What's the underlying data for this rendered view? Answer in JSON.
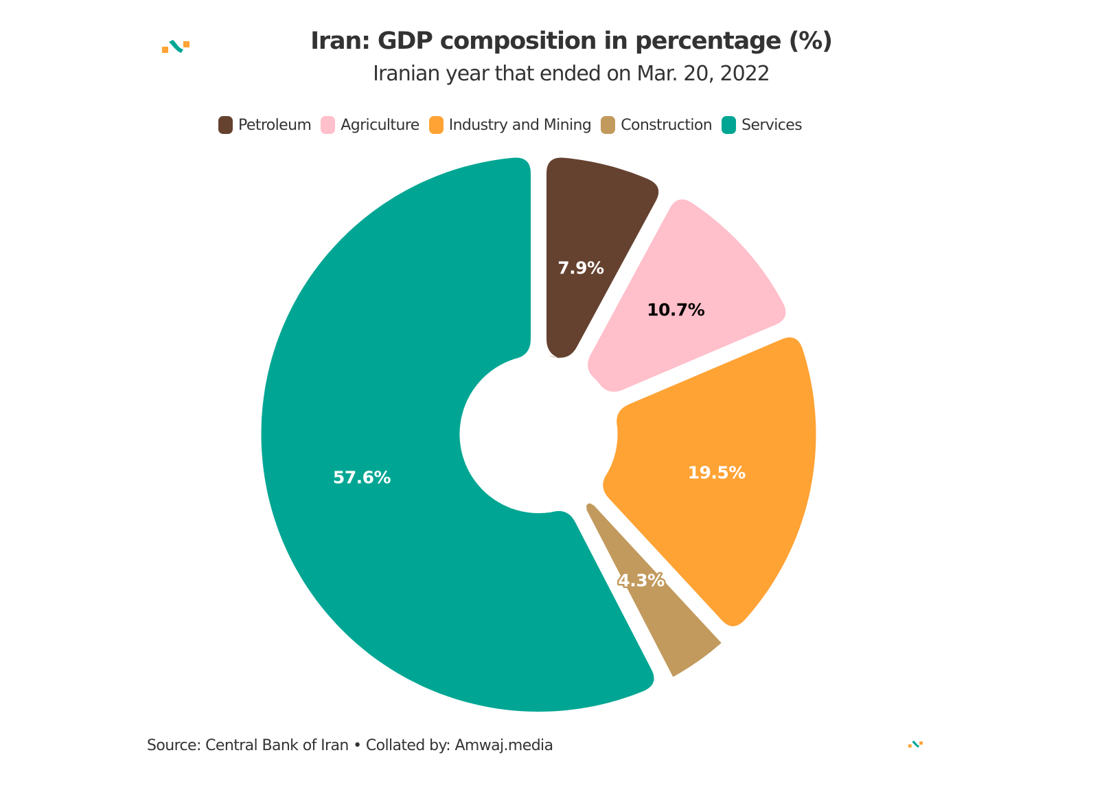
{
  "header": {
    "title": "Iran: GDP composition in percentage (%)",
    "subtitle": "Iranian year that ended on Mar. 20, 2022",
    "logo_icon": "amwaj-logo-icon"
  },
  "footer": {
    "source": "Source: Central Bank of Iran • Collated by: Amwaj.media",
    "logo_icon": "amwaj-logo-icon"
  },
  "colors": {
    "petroleum": "#654130",
    "agriculture": "#ffbfcb",
    "industry": "#ffa335",
    "construction": "#c29a5d",
    "services": "#00a693",
    "logo_teal": "#00a693",
    "logo_orange": "#ffa335"
  },
  "chart_data": {
    "type": "pie",
    "title": "Iran: GDP composition in percentage (%)",
    "subtitle": "Iranian year that ended on Mar. 20, 2022",
    "legend_position": "top",
    "categories": [
      "Petroleum",
      "Agriculture",
      "Industry and Mining",
      "Construction",
      "Services"
    ],
    "values": [
      7.9,
      10.7,
      19.5,
      4.3,
      57.6
    ],
    "labels": [
      "7.9%",
      "10.7%",
      "19.5%",
      "4.3%",
      "57.6%"
    ],
    "label_colors": [
      "#ffffff",
      "#000000",
      "#ffffff",
      "#ffffff",
      "#ffffff"
    ],
    "colors": [
      "#654130",
      "#ffbfcb",
      "#ffa335",
      "#c29a5d",
      "#00a693"
    ],
    "unit": "%",
    "donut": true
  }
}
